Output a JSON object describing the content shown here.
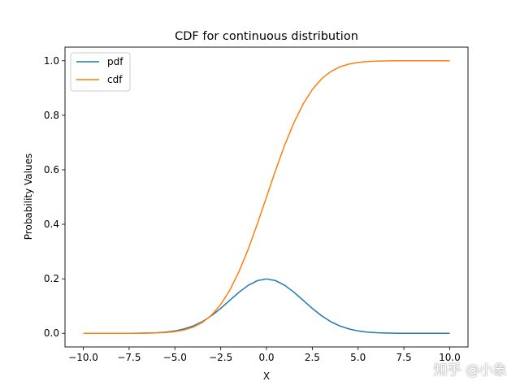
{
  "chart_data": {
    "type": "line",
    "title": "CDF for continuous distribution",
    "xlabel": "X",
    "ylabel": "Probability Values",
    "xlim": [
      -11,
      11
    ],
    "ylim": [
      -0.05,
      1.05
    ],
    "xticks": [
      -10,
      -7.5,
      -5,
      -2.5,
      0,
      2.5,
      5,
      7.5,
      10
    ],
    "xtick_labels": [
      "−10.0",
      "−7.5",
      "−5.0",
      "−2.5",
      "0.0",
      "2.5",
      "5.0",
      "7.5",
      "10.0"
    ],
    "yticks": [
      0,
      0.2,
      0.4,
      0.6,
      0.8,
      1.0
    ],
    "ytick_labels": [
      "0.0",
      "0.2",
      "0.4",
      "0.6",
      "0.8",
      "1.0"
    ],
    "grid": false,
    "legend_position": "top-left",
    "x": [
      -10,
      -9.5,
      -9,
      -8.5,
      -8,
      -7.5,
      -7,
      -6.5,
      -6,
      -5.5,
      -5,
      -4.5,
      -4,
      -3.5,
      -3,
      -2.5,
      -2,
      -1.5,
      -1,
      -0.5,
      0,
      0.5,
      1,
      1.5,
      2,
      2.5,
      3,
      3.5,
      4,
      4.5,
      5,
      5.5,
      6,
      6.5,
      7,
      7.5,
      8,
      8.5,
      9,
      9.5,
      10
    ],
    "series": [
      {
        "name": "pdf",
        "color": "#1f77b4",
        "values": [
          0,
          0,
          0,
          0,
          0.0001,
          0.0002,
          0.0004,
          0.001,
          0.0022,
          0.0045,
          0.0088,
          0.0159,
          0.027,
          0.0431,
          0.0648,
          0.0913,
          0.121,
          0.1506,
          0.176,
          0.1933,
          0.1995,
          0.1933,
          0.176,
          0.1506,
          0.121,
          0.0913,
          0.0648,
          0.0431,
          0.027,
          0.0159,
          0.0088,
          0.0045,
          0.0022,
          0.001,
          0.0004,
          0.0002,
          0.0001,
          0,
          0,
          0,
          0
        ]
      },
      {
        "name": "cdf",
        "color": "#ff7f0e",
        "values": [
          0,
          0,
          0,
          0,
          0,
          0.0001,
          0.0002,
          0.0006,
          0.0013,
          0.003,
          0.0062,
          0.0122,
          0.0228,
          0.0401,
          0.0668,
          0.1056,
          0.1587,
          0.2266,
          0.3085,
          0.4013,
          0.5,
          0.5987,
          0.6915,
          0.7734,
          0.8413,
          0.8944,
          0.9332,
          0.9599,
          0.9772,
          0.9878,
          0.9938,
          0.997,
          0.9987,
          0.9994,
          0.9998,
          0.9999,
          1,
          1,
          1,
          1,
          1
        ]
      }
    ]
  },
  "watermark": "知乎 @小象"
}
